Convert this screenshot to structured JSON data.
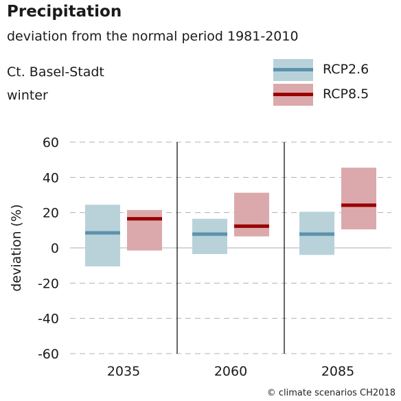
{
  "header": {
    "title": "Precipitation",
    "subtitle": "deviation from the normal period 1981-2010",
    "region": "Ct. Basel-Stadt",
    "season": "winter"
  },
  "legend": {
    "items": [
      {
        "label": "RCP2.6",
        "fill": "#b9d2da",
        "line": "#5b93ab"
      },
      {
        "label": "RCP8.5",
        "fill": "#dba9ac",
        "line": "#990000"
      }
    ]
  },
  "credit": "© climate scenarios CH2018",
  "chart_data": {
    "type": "bar",
    "title": "Precipitation",
    "subtitle": "deviation from the normal period 1981-2010",
    "ylabel": "deviation (%)",
    "xlabel": "",
    "ylim": [
      -60,
      60
    ],
    "yticks": [
      "60",
      "40",
      "20",
      "0",
      "-20",
      "-40",
      "-60"
    ],
    "ytick_values": [
      60,
      40,
      20,
      0,
      -20,
      -40,
      -60
    ],
    "grid": true,
    "legend_position": "top-right",
    "categories": [
      "2035",
      "2060",
      "2085"
    ],
    "series": [
      {
        "name": "RCP2.6",
        "color_fill": "#b9d2da",
        "color_median": "#5b93ab",
        "low": [
          -10.5,
          -3.5,
          -4
        ],
        "median": [
          8.5,
          7.8,
          7.8
        ],
        "high": [
          24.5,
          16.5,
          20.5
        ]
      },
      {
        "name": "RCP8.5",
        "color_fill": "#dba9ac",
        "color_median": "#990000",
        "low": [
          -1.5,
          6.5,
          10.5
        ],
        "median": [
          16.5,
          12.3,
          24.2
        ],
        "high": [
          21.5,
          31.3,
          45.5
        ]
      }
    ]
  }
}
